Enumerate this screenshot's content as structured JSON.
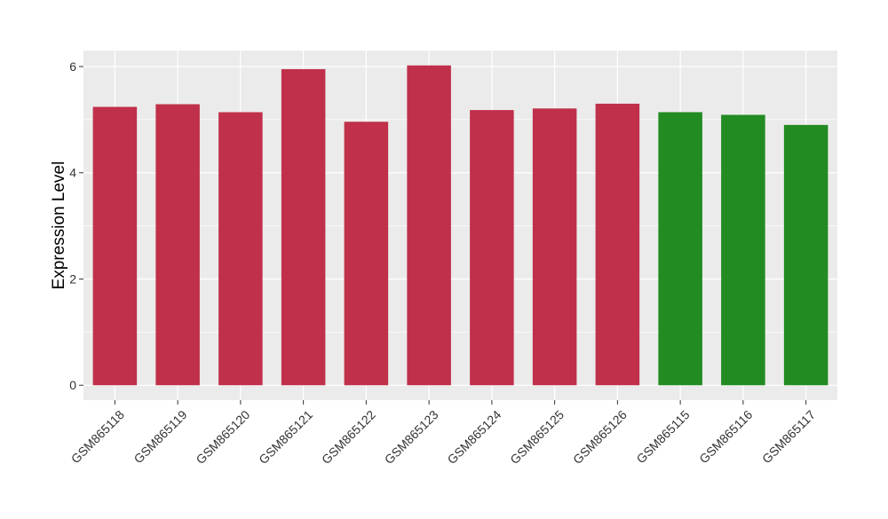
{
  "chart_data": {
    "type": "bar",
    "title": "",
    "xlabel": "",
    "ylabel": "Expression Level",
    "ylim": [
      -0.28,
      6.3
    ],
    "yticks": [
      0,
      2,
      4,
      6
    ],
    "categories": [
      "GSM865118",
      "GSM865119",
      "GSM865120",
      "GSM865121",
      "GSM865122",
      "GSM865123",
      "GSM865124",
      "GSM865125",
      "GSM865126",
      "GSM865115",
      "GSM865116",
      "GSM865117"
    ],
    "values": [
      5.24,
      5.29,
      5.14,
      5.95,
      4.96,
      6.02,
      5.18,
      5.21,
      5.3,
      5.14,
      5.09,
      4.9
    ],
    "colors": [
      "#C0304A",
      "#C0304A",
      "#C0304A",
      "#C0304A",
      "#C0304A",
      "#C0304A",
      "#C0304A",
      "#C0304A",
      "#C0304A",
      "#228B22",
      "#228B22",
      "#228B22"
    ],
    "grid": true,
    "panel_background": "#EBEBEB",
    "grid_color": "#FFFFFF",
    "legend": "none"
  }
}
